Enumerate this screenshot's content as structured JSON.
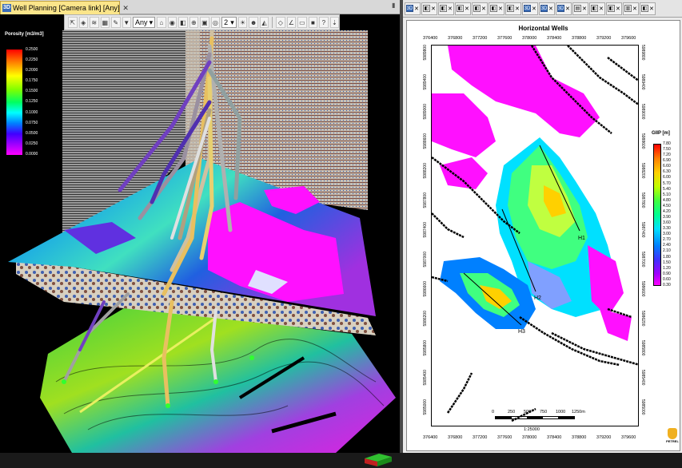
{
  "left_window": {
    "tab_badge": "3D",
    "tab_title": "Well Planning [Camera link]  [Any]",
    "tab_close": "✕",
    "toolbar": {
      "select_any": "Any",
      "select_num": "2"
    }
  },
  "porosity_legend": {
    "title": "Porosity [m3/m3]",
    "ticks": [
      "0.2500",
      "0.2250",
      "0.2000",
      "0.1750",
      "0.1500",
      "0.1250",
      "0.1000",
      "0.0750",
      "0.0500",
      "0.0250",
      "0.0000"
    ]
  },
  "right_window": {
    "tabs": [
      {
        "icon": "3D",
        "blue": true
      },
      {
        "icon": "◧",
        "blue": false
      },
      {
        "icon": "◧",
        "blue": false
      },
      {
        "icon": "◧",
        "blue": false
      },
      {
        "icon": "◧",
        "blue": false
      },
      {
        "icon": "◧",
        "blue": false
      },
      {
        "icon": "◧",
        "blue": false
      },
      {
        "icon": "3D",
        "blue": true
      },
      {
        "icon": "3D",
        "blue": true
      },
      {
        "icon": "3D",
        "blue": true
      },
      {
        "icon": "▤",
        "blue": false
      },
      {
        "icon": "◧",
        "blue": false
      },
      {
        "icon": "◧",
        "blue": false
      },
      {
        "icon": "▥",
        "blue": false
      },
      {
        "icon": "◧",
        "blue": false
      }
    ],
    "map": {
      "title": "Horizontal Wells",
      "x_ticks": [
        "376400",
        "376800",
        "377200",
        "377600",
        "378000",
        "378400",
        "378800",
        "379200",
        "379600"
      ],
      "y_ticks": [
        "5989800",
        "5989400",
        "5989000",
        "5988600",
        "5988200",
        "5987800",
        "5987400",
        "5987000",
        "5986600",
        "5986200",
        "5985800",
        "5985400",
        "5985000"
      ],
      "wells": [
        "H1",
        "H2",
        "H3"
      ],
      "scale_labels": [
        "0",
        "250",
        "500",
        "750",
        "1000",
        "1250m"
      ],
      "scale_ratio": "1:25000",
      "logo_text": "PETREL"
    },
    "giip_legend": {
      "title": "GIIP [m]",
      "ticks": [
        "7.80",
        "7.50",
        "7.20",
        "6.90",
        "6.60",
        "6.30",
        "6.00",
        "5.70",
        "5.40",
        "5.10",
        "4.80",
        "4.50",
        "4.20",
        "3.90",
        "3.60",
        "3.30",
        "3.00",
        "2.70",
        "2.40",
        "2.10",
        "1.80",
        "1.50",
        "1.20",
        "0.90",
        "0.60",
        "0.30"
      ]
    }
  },
  "colors": {
    "tab_active": "#fbe58a",
    "badge_blue": "#3b6db8",
    "magenta": "#ff00ff"
  }
}
